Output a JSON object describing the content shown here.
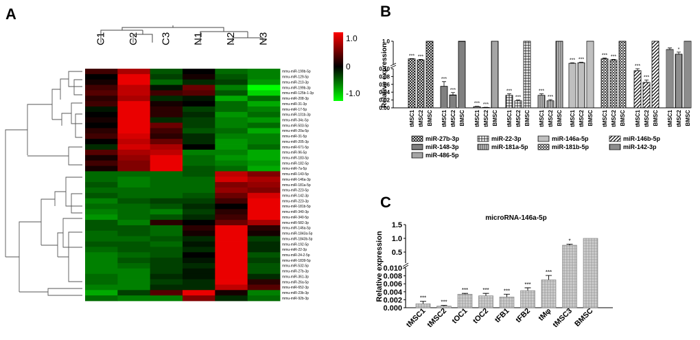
{
  "panels": {
    "a": "A",
    "b": "B",
    "c": "C"
  },
  "colors": {
    "high": "#ff0000",
    "mid": "#000000",
    "low": "#00ff00"
  },
  "chart_data": [
    {
      "type": "heatmap",
      "panel": "A",
      "title": "",
      "columns": [
        "C1",
        "C2",
        "C3",
        "N1",
        "N2",
        "N3"
      ],
      "rows": [
        "mmu-miR-199b-5p",
        "mmu-miR-129-5p",
        "mmu-miR-210-3p",
        "mmu-miR-199b-3p",
        "mmu-miR-125b-1-3p",
        "mmu-miR-208-3p",
        "mmu-miR-31-3p",
        "mmu-miR-17-5p",
        "mmu-miR-101b-3p",
        "mmu-miR-34c-5p",
        "mmu-miR-503-5p",
        "mmu-miR-20a-5p",
        "mmu-miR-31-5p",
        "mmu-miR-205-3p",
        "mmu-miR-671-5p",
        "mmu-miR-96-5p",
        "mmu-miR-183-5p",
        "mmu-miR-182-5p",
        "mmu-miR-7a-5p",
        "mmu-miR-143-5p",
        "mmu-miR-146a-3p",
        "mmu-miR-181a-5p",
        "mmu-miR-223-5p",
        "mmu-miR-142-3p",
        "mmu-miR-223-3p",
        "mmu-miR-181b-5p",
        "mmu-miR-340-3p",
        "mmu-miR-340-5p",
        "mmu-miR-582-3p",
        "mmu-miR-146a-5p",
        "mmu-miR-1843a-5p",
        "mmu-miR-1843b-5p",
        "mmu-miR-192-5p",
        "mmu-miR-22-3p",
        "mmu-miR-24-2-5p",
        "mmu-miR-1839-5p",
        "mmu-miR-532-5p",
        "mmu-miR-27b-3p",
        "mmu-miR-361-3p",
        "mmu-miR-26a-5p",
        "mmu-miR-652-3p",
        "mmu-miR-23b-3p",
        "mmu-miR-92b-3p"
      ],
      "values": [
        [
          0.3,
          0.8,
          -0.4,
          0,
          -0.5,
          -0.6
        ],
        [
          0,
          1.1,
          -0.3,
          0.1,
          -0.4,
          -0.6
        ],
        [
          0.1,
          1.1,
          -0.5,
          -0.2,
          -0.3,
          -0.7
        ],
        [
          0.3,
          0.9,
          -0.1,
          0.5,
          -0.6,
          -1.2
        ],
        [
          0.4,
          0.9,
          0.3,
          0.4,
          -0.4,
          -1
        ],
        [
          0.2,
          0.8,
          -0.2,
          -0.1,
          -0.8,
          -0.5
        ],
        [
          0.3,
          1.1,
          0.1,
          0,
          -0.5,
          -0.8
        ],
        [
          -0.1,
          1.1,
          0.2,
          -0.3,
          -0.5,
          -0.6
        ],
        [
          0,
          1.1,
          0.2,
          -0.2,
          -0.7,
          -0.5
        ],
        [
          0.1,
          1.1,
          -0.2,
          -0.3,
          -0.6,
          -0.7
        ],
        [
          0,
          1.1,
          0.5,
          -0.3,
          -0.6,
          -0.5
        ],
        [
          0.2,
          1.1,
          0.3,
          -0.4,
          -0.5,
          -0.8
        ],
        [
          0.3,
          1,
          0.2,
          -0.2,
          -0.6,
          -0.6
        ],
        [
          0,
          0.9,
          0.5,
          -0.2,
          -0.7,
          -0.6
        ],
        [
          -0.2,
          1,
          0.8,
          0,
          -0.7,
          -0.5
        ],
        [
          0.4,
          0.8,
          0.9,
          -0.6,
          -0.6,
          -0.8
        ],
        [
          0.1,
          0.7,
          1.1,
          -0.5,
          -0.7,
          -0.8
        ],
        [
          0.3,
          0.6,
          1.1,
          -0.5,
          -0.6,
          -0.7
        ],
        [
          0.1,
          0.6,
          1.1,
          -0.4,
          -0.5,
          -0.8
        ],
        [
          -0.5,
          -0.5,
          -0.5,
          -0.4,
          0.9,
          0.6
        ],
        [
          -0.5,
          -0.6,
          -0.5,
          -0.5,
          1,
          0.8
        ],
        [
          -0.4,
          -0.6,
          -0.5,
          -0.5,
          0.6,
          0.7
        ],
        [
          -0.5,
          -0.5,
          -0.5,
          -0.5,
          0.7,
          0.6
        ],
        [
          -0.4,
          -0.5,
          -0.5,
          -0.4,
          0.5,
          1
        ],
        [
          -0.6,
          -0.4,
          -0.3,
          -0.3,
          0.3,
          1.1
        ],
        [
          -0.5,
          -0.5,
          -0.4,
          -0.2,
          0,
          1.1
        ],
        [
          -0.6,
          -0.5,
          -0.6,
          -0.3,
          0.2,
          1.1
        ],
        [
          -0.7,
          -0.5,
          -0.4,
          -0.2,
          0.3,
          1.1
        ],
        [
          -0.4,
          -0.6,
          0.2,
          0,
          0.5,
          0.8
        ],
        [
          -0.4,
          -0.4,
          -0.5,
          0.2,
          1.1,
          0.2
        ],
        [
          -0.5,
          -0.4,
          -0.5,
          0.1,
          1.1,
          0.1
        ],
        [
          -0.5,
          -0.5,
          -0.4,
          -0.2,
          1.1,
          -0.3
        ],
        [
          -0.4,
          -0.4,
          -0.5,
          -0.1,
          1.1,
          -0.2
        ],
        [
          -0.5,
          -0.4,
          -0.4,
          -0.2,
          1.1,
          -0.2
        ],
        [
          -0.6,
          -0.5,
          -0.4,
          0,
          1.1,
          -0.4
        ],
        [
          -0.6,
          -0.4,
          -0.3,
          -0.1,
          1.1,
          -0.3
        ],
        [
          -0.6,
          -0.5,
          -0.3,
          -0.2,
          1.1,
          -0.4
        ],
        [
          -0.6,
          -0.6,
          -0.3,
          -0.1,
          1.1,
          -0.4
        ],
        [
          -0.5,
          -0.6,
          -0.2,
          -0.1,
          1.1,
          -0.2
        ],
        [
          -0.5,
          -0.6,
          -0.3,
          -0.2,
          1.1,
          0.2
        ],
        [
          -0.6,
          -0.6,
          -0.2,
          -0.2,
          0.9,
          0.4
        ],
        [
          -0.8,
          -0.3,
          0.4,
          1.1,
          0.1,
          -0.6
        ],
        [
          -0.5,
          -0.6,
          -0.6,
          0.6,
          -0.2,
          -0.5
        ]
      ],
      "colorbar": {
        "ticks": [
          "1.0",
          "0",
          "-1.0"
        ],
        "range": [
          -1.2,
          1.2
        ]
      }
    },
    {
      "type": "bar",
      "panel": "B",
      "title": "",
      "ylabel": "Relative expression",
      "ylim_lower": [
        0,
        0.1
      ],
      "ylim_upper": [
        0.1,
        1
      ],
      "yticks_lower": [
        "0.00",
        "0.02",
        "0.04",
        "0.06",
        "0.08",
        "0.10"
      ],
      "yticks_upper": [
        "1.0"
      ],
      "groups": [
        {
          "name": "miR-27b-3p",
          "values": [
            0.32,
            0.28,
            1
          ],
          "errors": [
            0.01,
            0.02,
            0
          ],
          "stars": [
            "***",
            "***",
            ""
          ]
        },
        {
          "name": "miR-148-3p",
          "values": [
            0.055,
            0.033,
            1
          ],
          "errors": [
            0.012,
            0.006,
            0
          ],
          "stars": [
            "***",
            "***",
            ""
          ]
        },
        {
          "name": "miR-486-5p",
          "values": [
            0.003,
            0.001,
            1
          ],
          "errors": [
            0.001,
            0.0005,
            0
          ],
          "stars": [
            "***",
            "***",
            ""
          ]
        },
        {
          "name": "miR-22-3p",
          "values": [
            0.032,
            0.018,
            1
          ],
          "errors": [
            0.004,
            0.002,
            0
          ],
          "stars": [
            "***",
            "***",
            ""
          ]
        },
        {
          "name": "miR-181a-5p",
          "values": [
            0.032,
            0.018,
            1
          ],
          "errors": [
            0.004,
            0.003,
            0
          ],
          "stars": [
            "***",
            "***",
            ""
          ]
        },
        {
          "name": "miR-146a-5p",
          "values": [
            0.15,
            0.17,
            1
          ],
          "errors": [
            0.02,
            0.02,
            0
          ],
          "stars": [
            "***",
            "***",
            ""
          ]
        },
        {
          "name": "miR-181b-5p",
          "values": [
            0.32,
            0.28,
            1
          ],
          "errors": [
            0.03,
            0.02,
            0
          ],
          "stars": [
            "***",
            "***",
            ""
          ]
        },
        {
          "name": "miR-146b-5p",
          "values": [
            0.095,
            0.065,
            1
          ],
          "errors": [
            0.005,
            0.006,
            0
          ],
          "stars": [
            "***",
            "***",
            ""
          ]
        },
        {
          "name": "miR-142-3p",
          "values": [
            0.68,
            0.5,
            1
          ],
          "errors": [
            0.06,
            0.08,
            0
          ],
          "stars": [
            "",
            "*",
            ""
          ]
        }
      ],
      "group_order": [
        "miR-27b-3p",
        "miR-148-3p",
        "miR-486-5p",
        "miR-22-3p",
        "miR-181a-5p",
        "miR-146a-5p",
        "miR-181b-5p",
        "miR-146b-5p",
        "miR-142-3p"
      ],
      "categories": [
        "tMSC1",
        "tMSC2",
        "BMSC"
      ],
      "legend": [
        "miR-27b-3p",
        "miR-22-3p",
        "miR-146a-5p",
        "miR-146b-5p",
        "miR-148-3p",
        "miR-181a-5p",
        "miR-181b-5p",
        "miR-142-3p",
        "miR-486-5p"
      ]
    },
    {
      "type": "bar",
      "panel": "C",
      "title": "microRNA-146a-5p",
      "ylabel": "Relative expression",
      "ylim_lower": [
        0,
        0.01
      ],
      "ylim_upper": [
        0.1,
        1
      ],
      "yticks_lower": [
        "0.000",
        "0.002",
        "0.004",
        "0.006",
        "0.008",
        "0.010"
      ],
      "yticks_upper": [
        "0.5",
        "1.0",
        "1.5"
      ],
      "categories": [
        "tMSC1",
        "tMSC2",
        "tOC1",
        "tOC2",
        "tFB1",
        "tFB2",
        "tMφ",
        "tMSC3",
        "BMSC"
      ],
      "values": [
        0.001,
        0.0004,
        0.0034,
        0.003,
        0.0027,
        0.0043,
        0.007,
        0.75,
        1
      ],
      "errors": [
        0.0006,
        0.0002,
        0.0002,
        0.0006,
        0.0007,
        0.0007,
        0.0011,
        0.04,
        0
      ],
      "stars": [
        "***",
        "***",
        "***",
        "***",
        "***",
        "***",
        "***",
        "*",
        ""
      ]
    }
  ]
}
